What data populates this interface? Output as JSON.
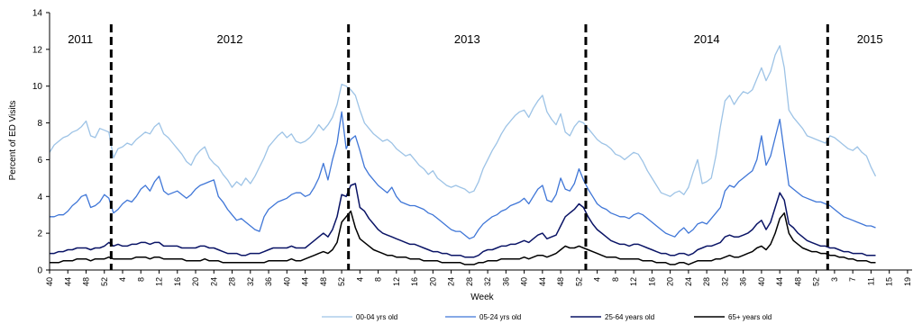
{
  "chart_data": {
    "type": "line",
    "xlabel": "Week",
    "ylabel": "Percent of ED Visits",
    "ylim": [
      0,
      14
    ],
    "yticks": [
      0,
      2,
      4,
      6,
      8,
      10,
      12,
      14
    ],
    "x_weeks": [
      40,
      41,
      42,
      43,
      44,
      45,
      46,
      47,
      48,
      49,
      50,
      51,
      52,
      53,
      1,
      2,
      3,
      4,
      5,
      6,
      7,
      8,
      9,
      10,
      11,
      12,
      13,
      14,
      15,
      16,
      17,
      18,
      19,
      20,
      21,
      22,
      23,
      24,
      25,
      26,
      27,
      28,
      29,
      30,
      31,
      32,
      33,
      34,
      35,
      36,
      37,
      38,
      39,
      40,
      41,
      42,
      43,
      44,
      45,
      46,
      47,
      48,
      49,
      50,
      51,
      52,
      1,
      2,
      3,
      4,
      5,
      6,
      7,
      8,
      9,
      10,
      11,
      12,
      13,
      14,
      15,
      16,
      17,
      18,
      19,
      20,
      21,
      22,
      23,
      24,
      25,
      26,
      27,
      28,
      29,
      30,
      31,
      32,
      33,
      34,
      35,
      36,
      37,
      38,
      39,
      40,
      41,
      42,
      43,
      44,
      45,
      46,
      47,
      48,
      49,
      50,
      51,
      52,
      1,
      2,
      3,
      4,
      5,
      6,
      7,
      8,
      9,
      10,
      11,
      12,
      13,
      14,
      15,
      16,
      17,
      18,
      19,
      20,
      21,
      22,
      23,
      24,
      25,
      26,
      27,
      28,
      29,
      30,
      31,
      32,
      33,
      34,
      35,
      36,
      37,
      38,
      39,
      40,
      41,
      42,
      43,
      44,
      45,
      46,
      47,
      48,
      49,
      50,
      51,
      52,
      53,
      1,
      2,
      3,
      4,
      5,
      6,
      7,
      8,
      9,
      10,
      11,
      12,
      13,
      14,
      15,
      16,
      17,
      18,
      19
    ],
    "tick_labels": [
      "40",
      "44",
      "48",
      "52",
      "4",
      "8",
      "12",
      "16",
      "20",
      "24",
      "28",
      "32",
      "36",
      "40",
      "44",
      "48",
      "52",
      "4",
      "8",
      "12",
      "16",
      "20",
      "24",
      "28",
      "32",
      "36",
      "40",
      "44",
      "48",
      "52",
      "4",
      "8",
      "12",
      "16",
      "20",
      "24",
      "28",
      "32",
      "36",
      "40",
      "44",
      "48",
      "52",
      "3",
      "7",
      "11",
      "15",
      "19"
    ],
    "year_labels": [
      "2011",
      "2012",
      "2013",
      "2014",
      "2015"
    ],
    "year_boundary_after_index": [
      13,
      65,
      117,
      170
    ],
    "series": [
      {
        "name": "00-04 yrs old",
        "color": "#9DC3E6",
        "width": 1.3,
        "values": [
          6.4,
          6.8,
          7.0,
          7.2,
          7.3,
          7.5,
          7.6,
          7.8,
          8.1,
          7.3,
          7.2,
          7.7,
          7.6,
          7.5,
          6.1,
          6.6,
          6.7,
          6.9,
          6.8,
          7.1,
          7.3,
          7.5,
          7.4,
          7.8,
          8.0,
          7.4,
          7.2,
          6.9,
          6.6,
          6.3,
          5.9,
          5.7,
          6.2,
          6.5,
          6.7,
          6.1,
          5.8,
          5.6,
          5.2,
          4.9,
          4.5,
          4.8,
          4.6,
          5.0,
          4.7,
          5.1,
          5.6,
          6.1,
          6.7,
          7.0,
          7.3,
          7.5,
          7.2,
          7.4,
          7.0,
          6.9,
          7.0,
          7.2,
          7.5,
          7.9,
          7.6,
          7.9,
          8.3,
          9.0,
          10.1,
          10.0,
          9.8,
          9.5,
          8.7,
          8.0,
          7.7,
          7.4,
          7.2,
          7.0,
          7.1,
          6.9,
          6.6,
          6.4,
          6.2,
          6.3,
          6.0,
          5.7,
          5.5,
          5.2,
          5.4,
          5.0,
          4.8,
          4.6,
          4.5,
          4.6,
          4.5,
          4.4,
          4.2,
          4.3,
          4.8,
          5.5,
          6.0,
          6.5,
          6.9,
          7.4,
          7.8,
          8.1,
          8.4,
          8.6,
          8.7,
          8.3,
          8.8,
          9.2,
          9.5,
          8.6,
          8.2,
          7.9,
          8.5,
          7.5,
          7.3,
          7.8,
          8.1,
          8.0,
          7.7,
          7.4,
          7.1,
          6.9,
          6.8,
          6.6,
          6.3,
          6.2,
          6.0,
          6.2,
          6.4,
          6.3,
          5.9,
          5.4,
          5.0,
          4.6,
          4.2,
          4.1,
          4.0,
          4.2,
          4.3,
          4.1,
          4.5,
          5.3,
          6.0,
          4.7,
          4.8,
          5.0,
          6.2,
          7.8,
          9.2,
          9.5,
          9.0,
          9.4,
          9.7,
          9.6,
          9.8,
          10.4,
          11.0,
          10.3,
          10.8,
          11.7,
          12.2,
          11.0,
          8.7,
          8.3,
          8.0,
          7.7,
          7.3,
          7.2,
          7.1,
          7.0,
          6.9,
          7.3,
          7.2,
          7.0,
          6.8,
          6.6,
          6.5,
          6.7,
          6.4,
          6.2,
          5.6,
          5.1
        ]
      },
      {
        "name": "05-24 yrs old",
        "color": "#3F76D7",
        "width": 1.3,
        "values": [
          2.9,
          2.9,
          3.0,
          3.0,
          3.2,
          3.5,
          3.7,
          4.0,
          4.1,
          3.4,
          3.5,
          3.7,
          4.1,
          3.9,
          3.1,
          3.3,
          3.6,
          3.8,
          3.7,
          4.0,
          4.4,
          4.6,
          4.3,
          4.8,
          5.1,
          4.3,
          4.1,
          4.2,
          4.3,
          4.1,
          3.9,
          4.1,
          4.4,
          4.6,
          4.7,
          4.8,
          4.9,
          4.0,
          3.7,
          3.3,
          3.0,
          2.7,
          2.8,
          2.6,
          2.4,
          2.2,
          2.1,
          2.9,
          3.3,
          3.5,
          3.7,
          3.8,
          3.9,
          4.1,
          4.2,
          4.2,
          4.0,
          4.1,
          4.5,
          5.0,
          5.8,
          4.9,
          6.0,
          6.9,
          8.6,
          6.6,
          7.1,
          7.3,
          6.5,
          5.6,
          5.2,
          4.9,
          4.6,
          4.4,
          4.2,
          4.5,
          4.0,
          3.7,
          3.6,
          3.5,
          3.5,
          3.4,
          3.3,
          3.1,
          3.0,
          2.8,
          2.6,
          2.4,
          2.2,
          2.1,
          2.1,
          1.9,
          1.7,
          1.8,
          2.2,
          2.5,
          2.7,
          2.9,
          3.0,
          3.2,
          3.3,
          3.5,
          3.6,
          3.7,
          3.9,
          3.6,
          4.0,
          4.4,
          4.6,
          3.8,
          3.7,
          4.1,
          5.0,
          4.4,
          4.3,
          4.7,
          5.5,
          4.9,
          4.4,
          4.0,
          3.6,
          3.4,
          3.3,
          3.1,
          3.0,
          2.9,
          2.9,
          2.8,
          3.0,
          3.1,
          3.0,
          2.8,
          2.6,
          2.4,
          2.2,
          2.0,
          1.9,
          1.8,
          2.1,
          2.3,
          2.0,
          2.2,
          2.5,
          2.6,
          2.5,
          2.8,
          3.1,
          3.4,
          4.3,
          4.6,
          4.5,
          4.8,
          5.0,
          5.2,
          5.4,
          6.0,
          7.3,
          5.7,
          6.2,
          7.2,
          8.2,
          6.4,
          4.6,
          4.4,
          4.2,
          4.0,
          3.9,
          3.8,
          3.7,
          3.7,
          3.6,
          3.5,
          3.3,
          3.1,
          2.9,
          2.8,
          2.7,
          2.6,
          2.5,
          2.4,
          2.4,
          2.3
        ]
      },
      {
        "name": "25-64 years old",
        "color": "#0A1466",
        "width": 1.5,
        "values": [
          0.9,
          0.9,
          1.0,
          1.0,
          1.1,
          1.1,
          1.2,
          1.2,
          1.2,
          1.1,
          1.2,
          1.2,
          1.3,
          1.5,
          1.3,
          1.4,
          1.3,
          1.3,
          1.4,
          1.4,
          1.5,
          1.5,
          1.4,
          1.5,
          1.5,
          1.3,
          1.3,
          1.3,
          1.3,
          1.2,
          1.2,
          1.2,
          1.2,
          1.3,
          1.3,
          1.2,
          1.2,
          1.1,
          1.0,
          0.9,
          0.9,
          0.9,
          0.8,
          0.8,
          0.9,
          0.9,
          0.9,
          1.0,
          1.1,
          1.2,
          1.2,
          1.2,
          1.2,
          1.3,
          1.2,
          1.2,
          1.2,
          1.4,
          1.6,
          1.8,
          2.0,
          1.8,
          2.2,
          2.9,
          4.1,
          4.0,
          4.6,
          4.7,
          3.4,
          3.2,
          2.8,
          2.5,
          2.2,
          2.0,
          1.9,
          1.8,
          1.7,
          1.6,
          1.5,
          1.4,
          1.4,
          1.3,
          1.2,
          1.1,
          1.0,
          1.0,
          0.9,
          0.9,
          0.8,
          0.8,
          0.8,
          0.7,
          0.7,
          0.7,
          0.8,
          1.0,
          1.1,
          1.1,
          1.2,
          1.3,
          1.3,
          1.4,
          1.4,
          1.5,
          1.6,
          1.5,
          1.7,
          1.9,
          2.0,
          1.7,
          1.8,
          1.9,
          2.4,
          2.9,
          3.1,
          3.3,
          3.6,
          3.4,
          2.9,
          2.5,
          2.2,
          2.0,
          1.8,
          1.6,
          1.5,
          1.4,
          1.4,
          1.3,
          1.4,
          1.4,
          1.3,
          1.2,
          1.1,
          1.0,
          0.9,
          0.9,
          0.8,
          0.8,
          0.9,
          0.9,
          0.8,
          0.9,
          1.1,
          1.2,
          1.3,
          1.3,
          1.4,
          1.5,
          1.8,
          1.9,
          1.8,
          1.8,
          1.9,
          2.0,
          2.2,
          2.5,
          2.7,
          2.2,
          2.6,
          3.4,
          4.2,
          3.8,
          2.5,
          2.3,
          2.0,
          1.8,
          1.6,
          1.5,
          1.4,
          1.3,
          1.3,
          1.2,
          1.2,
          1.1,
          1.0,
          1.0,
          0.9,
          0.9,
          0.9,
          0.8,
          0.8,
          0.8
        ]
      },
      {
        "name": "65+ years old",
        "color": "#000000",
        "width": 1.5,
        "values": [
          0.4,
          0.4,
          0.4,
          0.5,
          0.5,
          0.5,
          0.6,
          0.6,
          0.6,
          0.5,
          0.6,
          0.6,
          0.6,
          0.7,
          0.6,
          0.6,
          0.6,
          0.6,
          0.6,
          0.7,
          0.7,
          0.7,
          0.6,
          0.7,
          0.7,
          0.6,
          0.6,
          0.6,
          0.6,
          0.6,
          0.5,
          0.5,
          0.5,
          0.5,
          0.6,
          0.5,
          0.5,
          0.5,
          0.4,
          0.4,
          0.4,
          0.4,
          0.4,
          0.4,
          0.4,
          0.4,
          0.4,
          0.4,
          0.5,
          0.5,
          0.5,
          0.5,
          0.5,
          0.6,
          0.5,
          0.5,
          0.6,
          0.7,
          0.8,
          0.9,
          1.0,
          0.9,
          1.1,
          1.5,
          2.6,
          2.9,
          3.2,
          2.3,
          1.7,
          1.5,
          1.3,
          1.1,
          1.0,
          0.9,
          0.8,
          0.8,
          0.7,
          0.7,
          0.7,
          0.6,
          0.6,
          0.6,
          0.5,
          0.5,
          0.5,
          0.5,
          0.4,
          0.4,
          0.4,
          0.4,
          0.4,
          0.3,
          0.3,
          0.3,
          0.4,
          0.4,
          0.5,
          0.5,
          0.5,
          0.6,
          0.6,
          0.6,
          0.6,
          0.6,
          0.7,
          0.6,
          0.7,
          0.8,
          0.8,
          0.7,
          0.8,
          0.9,
          1.1,
          1.3,
          1.2,
          1.2,
          1.3,
          1.2,
          1.1,
          1.0,
          0.9,
          0.8,
          0.7,
          0.7,
          0.7,
          0.6,
          0.6,
          0.6,
          0.6,
          0.6,
          0.5,
          0.5,
          0.5,
          0.4,
          0.4,
          0.4,
          0.3,
          0.3,
          0.4,
          0.4,
          0.3,
          0.4,
          0.5,
          0.5,
          0.5,
          0.5,
          0.6,
          0.6,
          0.7,
          0.8,
          0.7,
          0.7,
          0.8,
          0.9,
          1.0,
          1.2,
          1.3,
          1.1,
          1.4,
          2.0,
          2.8,
          3.1,
          2.0,
          1.6,
          1.4,
          1.2,
          1.1,
          1.0,
          1.0,
          0.9,
          0.9,
          0.8,
          0.8,
          0.7,
          0.7,
          0.6,
          0.6,
          0.5,
          0.5,
          0.5,
          0.4,
          0.4
        ]
      }
    ]
  }
}
